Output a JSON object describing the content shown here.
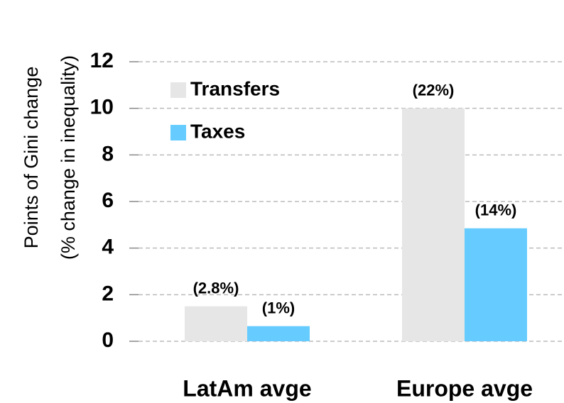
{
  "chart_data": {
    "type": "bar",
    "y_axis_label": [
      "Points of Gini change",
      "(% change in inequality)"
    ],
    "categories": [
      "LatAm avge",
      "Europe avge"
    ],
    "series": [
      {
        "name": "Transfers",
        "color": "#e6e6e6",
        "values": [
          1.5,
          10
        ],
        "annotations": [
          "(2.8%)",
          "(22%)"
        ]
      },
      {
        "name": "Taxes",
        "color": "#66ccff",
        "values": [
          0.65,
          4.85
        ],
        "annotations": [
          "(1%)",
          "(14%)"
        ]
      }
    ],
    "ylim": [
      0,
      12
    ],
    "yticks": [
      0,
      2,
      4,
      6,
      8,
      10,
      12
    ],
    "grid": true,
    "legend": "upper left"
  }
}
